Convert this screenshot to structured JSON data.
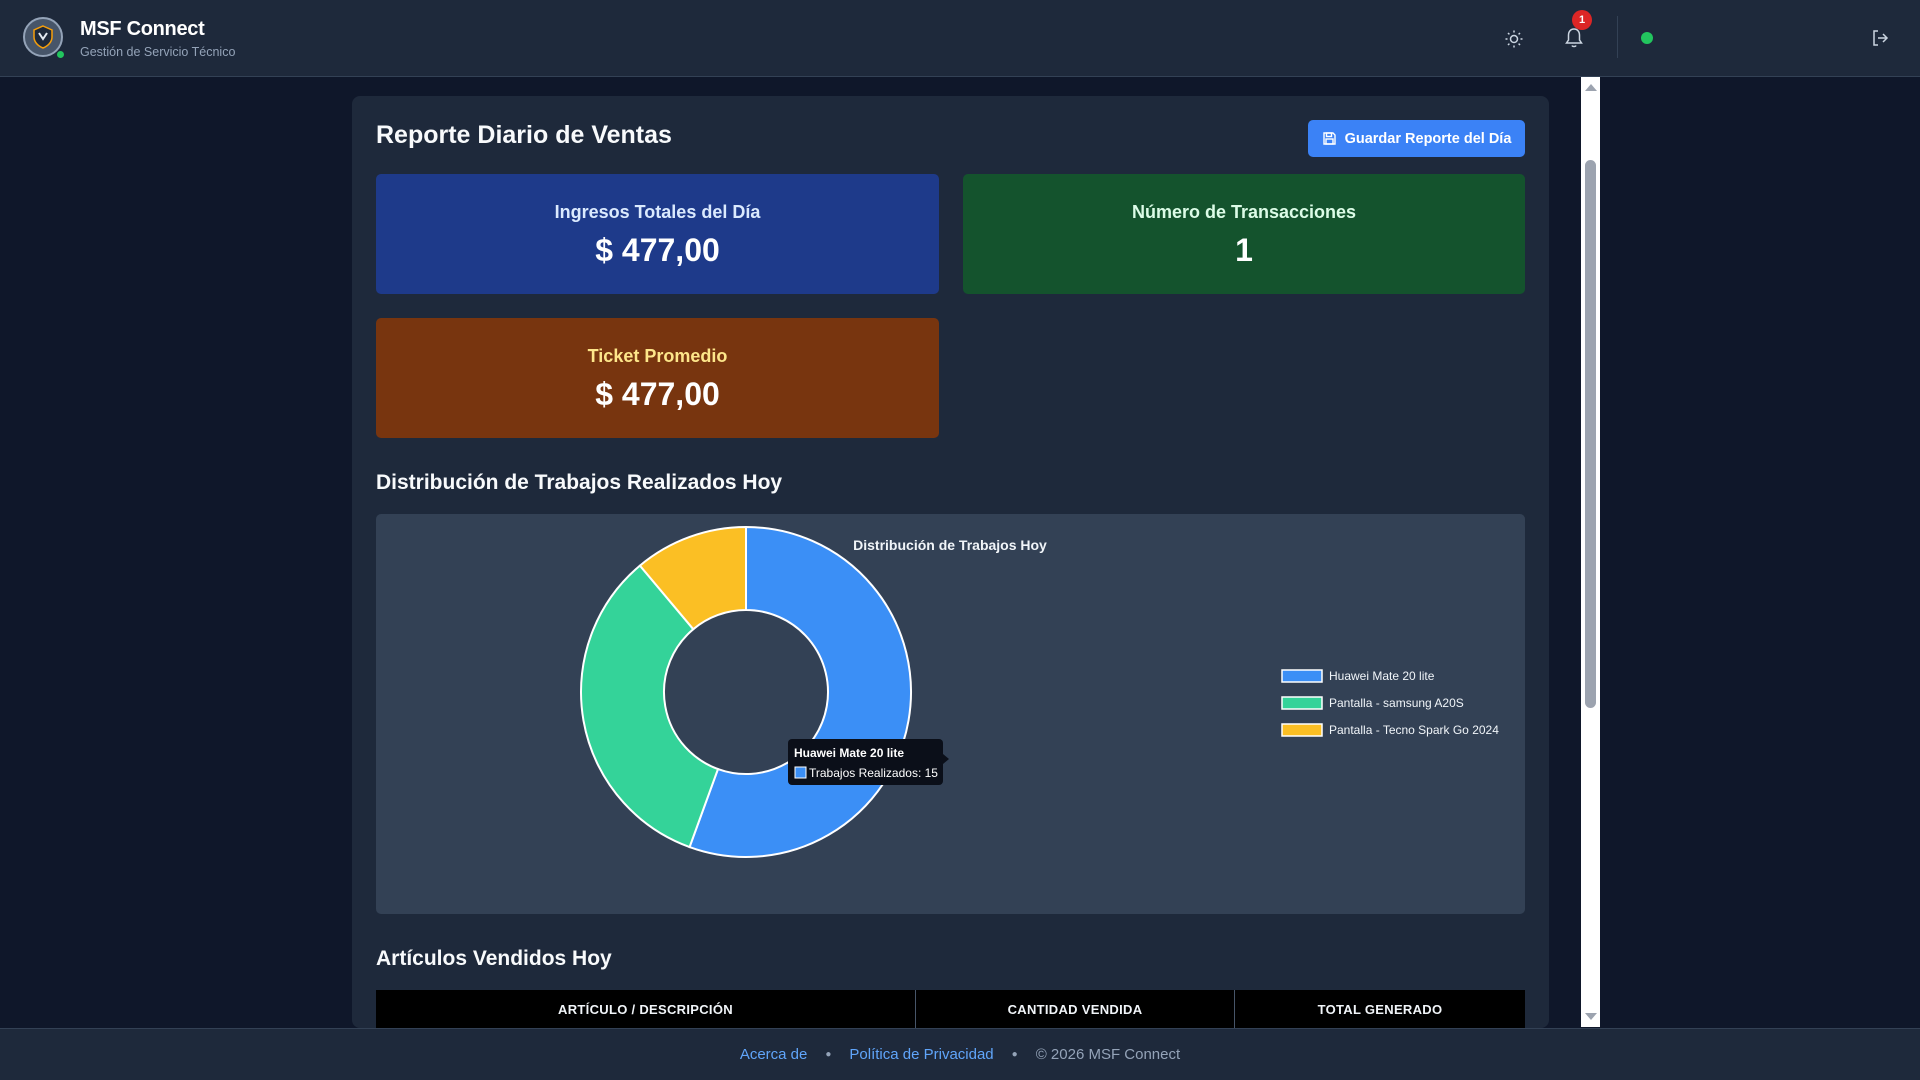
{
  "header": {
    "app_name": "MSF Connect",
    "subtitle": "Gestión de Servicio Técnico",
    "notification_count": "1",
    "status_color": "#22c55e"
  },
  "report": {
    "title": "Reporte Diario de Ventas",
    "save_button_label": "Guardar Reporte del Día",
    "cards": {
      "income": {
        "label": "Ingresos Totales del Día",
        "value": "$ 477,00",
        "color": "#1e3a8a"
      },
      "transactions": {
        "label": "Número de Transacciones",
        "value": "1",
        "color": "#14532d"
      },
      "ticket": {
        "label": "Ticket Promedio",
        "value": "$ 477,00",
        "color": "#78350f"
      }
    },
    "distribution_section_title": "Distribución de Trabajos Realizados Hoy",
    "articles_section_title": "Artículos Vendidos Hoy",
    "table_headers": [
      "ARTÍCULO / DESCRIPCIÓN",
      "CANTIDAD VENDIDA",
      "TOTAL GENERADO"
    ]
  },
  "chart_data": {
    "type": "pie",
    "title": "Distribución de Trabajos Hoy",
    "categories": [
      "Huawei Mate 20 lite",
      "Pantalla - samsung A20S",
      "Pantalla - Tecno Spark Go 2024"
    ],
    "values": [
      15,
      9,
      3
    ],
    "colors": [
      "#3b8ff6",
      "#34d399",
      "#fbbf24"
    ],
    "donut": true,
    "legend_position": "right",
    "tooltip": {
      "title": "Huawei Mate 20 lite",
      "series_label": "Trabajos Realizados: 15"
    }
  },
  "footer": {
    "about": "Acerca de",
    "privacy": "Política de Privacidad",
    "copyright": "© 2026 MSF Connect"
  }
}
